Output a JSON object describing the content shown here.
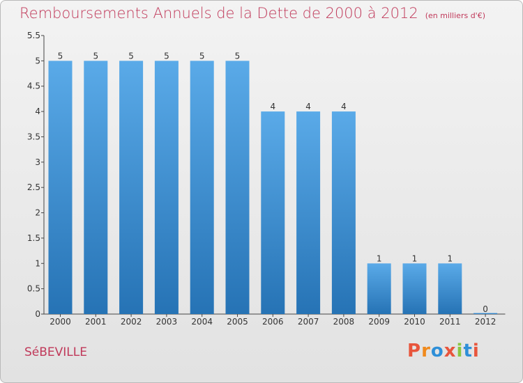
{
  "header": {
    "title": "Remboursements Annuels de la Dette de 2000 à 2012",
    "unit": "(en milliers d'€)"
  },
  "footer": {
    "commune": "SéBEVILLE",
    "logo": "Proxiti"
  },
  "colors": {
    "title": "#c0395a",
    "bar_top": "#5aaae8",
    "bar_bottom": "#2673b5",
    "logo_letters": [
      "#e8553c",
      "#f08a1d",
      "#2e8fd8",
      "#e8553c",
      "#8ac641",
      "#2e8fd8",
      "#e8553c"
    ]
  },
  "chart_data": {
    "type": "bar",
    "title": "Remboursements Annuels de la Dette de 2000 à 2012",
    "xlabel": "",
    "ylabel": "",
    "categories": [
      "2000",
      "2001",
      "2002",
      "2003",
      "2004",
      "2005",
      "2006",
      "2007",
      "2008",
      "2009",
      "2010",
      "2011",
      "2012"
    ],
    "values": [
      5,
      5,
      5,
      5,
      5,
      5,
      4,
      4,
      4,
      1,
      1,
      1,
      0
    ],
    "data_labels": [
      "5",
      "5",
      "5",
      "5",
      "5",
      "5",
      "4",
      "4",
      "4",
      "1",
      "1",
      "1",
      "0"
    ],
    "ylim": [
      0,
      5.5
    ],
    "yticks": [
      0,
      0.5,
      1,
      1.5,
      2,
      2.5,
      3,
      3.5,
      4,
      4.5,
      5,
      5.5
    ],
    "ytick_labels": [
      "0",
      "0.5",
      "1",
      "1.5",
      "2",
      "2.5",
      "3",
      "3.5",
      "4",
      "4.5",
      "5",
      "5.5"
    ],
    "grid": false,
    "legend": "none"
  }
}
